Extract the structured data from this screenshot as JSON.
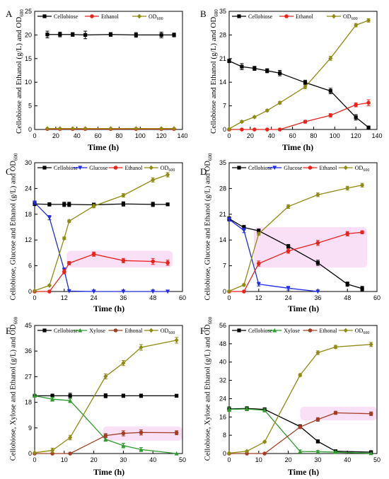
{
  "figure": {
    "colors": {
      "Cellobiose": "#000000",
      "Ethanol": "#e8231c",
      "Ethonal": "#a33d26",
      "Glucose": "#1f2be8",
      "Xylose": "#2e9b2e",
      "OD600": "#8f8a12",
      "highlight": "#f4c6f0"
    }
  },
  "chart_data": [
    {
      "panel": "A",
      "type": "line",
      "xlabel": "Time (h)",
      "ylabel": "Cellobiose and Ethanol (g/L) and OD600",
      "xlim": [
        0,
        140
      ],
      "ylim": [
        0,
        25
      ],
      "xticks": [
        0,
        20,
        40,
        60,
        80,
        100,
        120,
        140
      ],
      "yticks": [
        0,
        5,
        10,
        15,
        20,
        25
      ],
      "legend": [
        "Cellobiose",
        "Ethanol",
        "OD600"
      ],
      "series": [
        {
          "name": "Cellobiose",
          "x": [
            12,
            24,
            36,
            48,
            72,
            96,
            120,
            132
          ],
          "y": [
            20.1,
            20.1,
            20.1,
            20.0,
            20.1,
            20.0,
            20.0,
            20.0
          ],
          "err": [
            0.7,
            0.5,
            0.4,
            0.8,
            0.4,
            0.5,
            0.6,
            0.4
          ]
        },
        {
          "name": "Ethanol",
          "x": [
            12,
            24,
            36,
            48,
            72,
            96,
            120,
            132
          ],
          "y": [
            0.1,
            0.1,
            0.1,
            0.1,
            0.1,
            0.1,
            0.1,
            0.1
          ]
        },
        {
          "name": "OD600",
          "x": [
            12,
            24,
            36,
            48,
            72,
            96,
            120,
            132
          ],
          "y": [
            0.2,
            0.2,
            0.2,
            0.2,
            0.2,
            0.2,
            0.2,
            0.2
          ]
        }
      ]
    },
    {
      "panel": "B",
      "type": "line",
      "xlabel": "Time (h)",
      "ylabel": "Cellobiose and Ethanol (g/L) and OD600",
      "xlim": [
        0,
        140
      ],
      "ylim": [
        0,
        35
      ],
      "xticks": [
        0,
        20,
        40,
        60,
        80,
        100,
        120,
        140
      ],
      "yticks": [
        0,
        7,
        14,
        21,
        28,
        35
      ],
      "legend": [
        "Cellobiose",
        "Ethanol",
        "OD600"
      ],
      "series": [
        {
          "name": "Cellobiose",
          "x": [
            0,
            12,
            24,
            36,
            48,
            72,
            96,
            120,
            132
          ],
          "y": [
            20.3,
            18.6,
            18.1,
            17.4,
            16.7,
            13.9,
            11.4,
            3.6,
            0.6
          ],
          "err": [
            0.5,
            0.9,
            0.6,
            0.6,
            0.8,
            0.7,
            0.8,
            0.8,
            0.3
          ]
        },
        {
          "name": "Ethanol",
          "x": [
            0,
            12,
            24,
            36,
            48,
            72,
            96,
            120,
            132
          ],
          "y": [
            0,
            0,
            0,
            0,
            0,
            2.3,
            4.2,
            7.3,
            7.9
          ],
          "err": [
            0,
            0,
            0,
            0,
            0,
            0.4,
            0.5,
            0.6,
            0.9
          ]
        },
        {
          "name": "OD600",
          "x": [
            0,
            12,
            24,
            36,
            48,
            72,
            96,
            120,
            132
          ],
          "y": [
            0.2,
            2.3,
            3.7,
            5.6,
            7.9,
            12.6,
            21.1,
            30.9,
            32.3
          ],
          "err": [
            0,
            0.3,
            0.3,
            0.3,
            0.4,
            0.5,
            0.6,
            0.5,
            0.5
          ]
        }
      ]
    },
    {
      "panel": "C",
      "type": "line",
      "xlabel": "Time (h)",
      "ylabel": "Cellobiose, Glucose and Ethanol (g/L) and OD600",
      "xlim": [
        0,
        60
      ],
      "ylim": [
        0,
        30
      ],
      "xticks": [
        0,
        12,
        24,
        36,
        48,
        60
      ],
      "yticks": [
        0,
        6,
        12,
        18,
        24,
        30
      ],
      "legend": [
        "Cellobiose",
        "Glucose",
        "Ethanol",
        "OD600"
      ],
      "highlight": {
        "x": [
          13,
          56
        ],
        "y": [
          5.6,
          9.5
        ]
      },
      "series": [
        {
          "name": "Cellobiose",
          "x": [
            0,
            6,
            12,
            14,
            24,
            36,
            48,
            54
          ],
          "y": [
            20.4,
            20.3,
            20.3,
            20.3,
            20.2,
            20.4,
            20.3,
            20.3
          ],
          "err": [
            0.4,
            0.4,
            0.5,
            0.5,
            0.4,
            0.5,
            0.5,
            0.3
          ]
        },
        {
          "name": "Glucose",
          "x": [
            0,
            6,
            12,
            14,
            24,
            36,
            48,
            54
          ],
          "y": [
            20.7,
            17.2,
            5.0,
            0.1,
            0,
            0,
            0,
            0
          ],
          "err": [
            0.4,
            0.5,
            0.5,
            0,
            0,
            0,
            0,
            0
          ]
        },
        {
          "name": "Ethanol",
          "x": [
            0,
            6,
            12,
            14,
            24,
            36,
            48,
            54
          ],
          "y": [
            0,
            0,
            4.6,
            6.6,
            8.7,
            7.2,
            7.0,
            6.7
          ],
          "err": [
            0,
            0,
            0.5,
            0.4,
            0.5,
            0.5,
            0.7,
            0.6
          ]
        },
        {
          "name": "OD600",
          "x": [
            0,
            6,
            12,
            14,
            24,
            36,
            48,
            54
          ],
          "y": [
            0.2,
            1.4,
            12.4,
            16.4,
            19.9,
            22.4,
            26.0,
            27.2
          ],
          "err": [
            0,
            0.2,
            0.3,
            0.3,
            0.4,
            0.4,
            0.5,
            0.5
          ]
        }
      ]
    },
    {
      "panel": "D",
      "type": "line",
      "xlabel": "Time (h)",
      "ylabel": "Cellobiose, Glucose and Ethanol (g/L) and OD600",
      "xlim": [
        0,
        60
      ],
      "ylim": [
        0,
        35
      ],
      "xticks": [
        0,
        12,
        24,
        36,
        48,
        60
      ],
      "yticks": [
        0,
        7,
        14,
        21,
        28,
        35
      ],
      "legend": [
        "Cellobiose",
        "Glucose",
        "Ethanol",
        "OD600"
      ],
      "highlight": {
        "x": [
          10,
          56
        ],
        "y": [
          6.5,
          17.5
        ]
      },
      "series": [
        {
          "name": "Cellobiose",
          "x": [
            0,
            6,
            12,
            24,
            36,
            48,
            54
          ],
          "y": [
            19.8,
            17.4,
            16.5,
            12.3,
            7.8,
            2.0,
            0.8
          ],
          "err": [
            0.5,
            0.6,
            0.5,
            0.5,
            0.7,
            0.6,
            0.6
          ]
        },
        {
          "name": "Glucose",
          "x": [
            0,
            6,
            12,
            24,
            36
          ],
          "y": [
            19.6,
            16.6,
            2.0,
            0.9,
            0
          ],
          "err": [
            0.5,
            0.6,
            0.5,
            0.5,
            0
          ]
        },
        {
          "name": "Ethanol",
          "x": [
            0,
            6,
            12,
            24,
            36,
            48,
            54
          ],
          "y": [
            0,
            0,
            7.6,
            11.0,
            13.2,
            15.7,
            16.1
          ],
          "err": [
            0,
            0,
            0.7,
            0.6,
            0.7,
            0.6,
            0.4
          ]
        },
        {
          "name": "OD600",
          "x": [
            0,
            6,
            12,
            24,
            36,
            48,
            54
          ],
          "y": [
            0.1,
            1.8,
            15.7,
            23.1,
            26.3,
            28.1,
            28.9
          ],
          "err": [
            0,
            0.3,
            0.4,
            0.5,
            0.5,
            0.5,
            0.5
          ]
        }
      ]
    },
    {
      "panel": "E",
      "type": "line",
      "xlabel": "Time (h)",
      "ylabel": "Cellobiose, Xylose and Ethanol (g/L) and OD600",
      "xlim": [
        0,
        50
      ],
      "ylim": [
        0,
        45
      ],
      "xticks": [
        0,
        10,
        20,
        30,
        40,
        50
      ],
      "yticks": [
        0,
        9,
        18,
        27,
        36,
        45
      ],
      "legend": [
        "Cellobiose",
        "Xylose",
        "Ethonal",
        "OD600"
      ],
      "highlight": {
        "x": [
          23,
          50
        ],
        "y": [
          4.5,
          9.5
        ]
      },
      "series": [
        {
          "name": "Cellobiose",
          "x": [
            0,
            6,
            12,
            24,
            30,
            36,
            48
          ],
          "y": [
            20.3,
            20.3,
            20.3,
            20.3,
            20.3,
            20.3,
            20.3
          ],
          "err": [
            0.5,
            0.6,
            0.9,
            0.7,
            0.6,
            0.6,
            0.5
          ]
        },
        {
          "name": "Xylose",
          "x": [
            0,
            6,
            12,
            24,
            30,
            36,
            48
          ],
          "y": [
            20.3,
            19.1,
            18.6,
            5.0,
            2.8,
            1.4,
            0
          ],
          "err": [
            0.5,
            0.7,
            0.7,
            0.7,
            0.8,
            0.7,
            0
          ]
        },
        {
          "name": "Ethonal",
          "x": [
            0,
            6,
            12,
            24,
            30,
            36,
            48
          ],
          "y": [
            0,
            0,
            0,
            6.3,
            7.1,
            7.4,
            7.3
          ],
          "err": [
            0,
            0,
            0,
            0.7,
            0.9,
            0.9,
            0.7
          ]
        },
        {
          "name": "OD600",
          "x": [
            0,
            6,
            12,
            24,
            30,
            36,
            48
          ],
          "y": [
            0.3,
            1.1,
            5.6,
            27.1,
            31.8,
            37.3,
            39.8
          ],
          "err": [
            0,
            0.8,
            0.8,
            0.9,
            0.9,
            1.0,
            1.0
          ]
        }
      ]
    },
    {
      "panel": "F",
      "type": "line",
      "xlabel": "Time (h)",
      "ylabel": "Cellobiose, Xylose and Ethanol (g/L) and OD600",
      "xlim": [
        0,
        50
      ],
      "ylim": [
        0,
        56
      ],
      "xticks": [
        0,
        10,
        20,
        30,
        40,
        50
      ],
      "yticks": [
        0,
        8,
        16,
        24,
        32,
        40,
        48,
        56
      ],
      "legend": [
        "Cellobiose",
        "Xylose",
        "Ethonal",
        "OD600"
      ],
      "highlight": {
        "x": [
          24,
          50
        ],
        "y": [
          14.5,
          20.5
        ]
      },
      "series": [
        {
          "name": "Cellobiose",
          "x": [
            0,
            6,
            12,
            24,
            30,
            36,
            48
          ],
          "y": [
            19.5,
            19.7,
            19.3,
            11.8,
            5.3,
            1.0,
            0.6
          ],
          "err": [
            0.9,
            0.8,
            0.7,
            0.8,
            0.7,
            0.5,
            0.4
          ]
        },
        {
          "name": "Xylose",
          "x": [
            0,
            6,
            12,
            24,
            30,
            36,
            48
          ],
          "y": [
            19.3,
            19.5,
            18.9,
            0.9,
            0.8,
            0.6,
            0.1
          ],
          "err": [
            0.9,
            0.8,
            0.7,
            0.7,
            0.6,
            0.4,
            0
          ]
        },
        {
          "name": "Ethonal",
          "x": [
            0,
            6,
            12,
            24,
            30,
            36,
            48
          ],
          "y": [
            0,
            0,
            0,
            11.6,
            14.9,
            17.8,
            17.4
          ],
          "err": [
            0,
            0,
            0,
            0.7,
            0.8,
            0.7,
            0.8
          ]
        },
        {
          "name": "OD600",
          "x": [
            0,
            6,
            12,
            24,
            30,
            36,
            48
          ],
          "y": [
            0.2,
            1.0,
            5.1,
            34.3,
            44.1,
            46.6,
            47.7
          ],
          "err": [
            0,
            0.3,
            0.4,
            0.6,
            0.8,
            0.7,
            0.9
          ]
        }
      ]
    }
  ]
}
